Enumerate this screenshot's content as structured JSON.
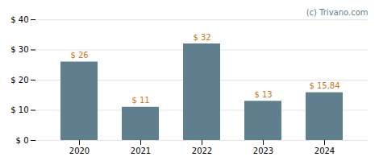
{
  "chart_data": {
    "type": "bar",
    "categories": [
      "2020",
      "2021",
      "2022",
      "2023",
      "2024"
    ],
    "values": [
      26,
      11,
      32,
      13,
      15.84
    ],
    "value_labels": [
      "$ 26",
      "$ 11",
      "$ 32",
      "$ 13",
      "$ 15,84"
    ],
    "color": "#5f7f8e",
    "ylim": [
      0,
      40
    ],
    "yticks": [
      {
        "value": 0,
        "label": "$ 0"
      },
      {
        "value": 10,
        "label": "$ 10"
      },
      {
        "value": 20,
        "label": "$ 20"
      },
      {
        "value": 30,
        "label": "$ 30"
      },
      {
        "value": 40,
        "label": "$ 40"
      }
    ],
    "grid": true,
    "data_labels": true,
    "annotations": [
      "(c) Trivano.com"
    ]
  }
}
